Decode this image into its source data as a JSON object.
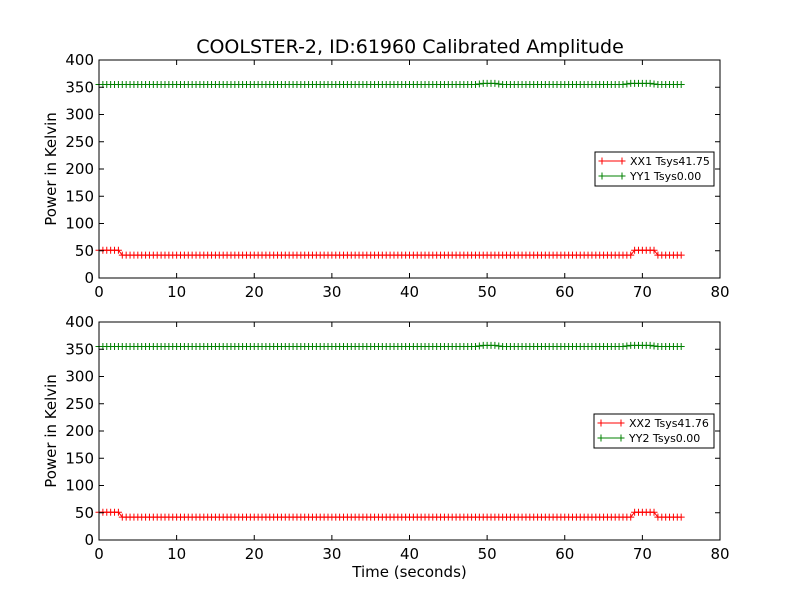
{
  "figure": {
    "title": "COOLSTER-2, ID:61960 Calibrated Amplitude"
  },
  "chart_data": [
    {
      "type": "line",
      "title": "COOLSTER-2, ID:61960 Calibrated Amplitude",
      "xlabel": "",
      "ylabel": "Power in Kelvin",
      "xlim": [
        0,
        80
      ],
      "ylim": [
        0,
        400
      ],
      "xticks": [
        "0",
        "10",
        "20",
        "30",
        "40",
        "50",
        "60",
        "70",
        "80"
      ],
      "yticks": [
        "0",
        "50",
        "100",
        "150",
        "200",
        "250",
        "300",
        "350",
        "400"
      ],
      "grid": false,
      "legend_position": "right",
      "marker": "+",
      "x_range": [
        0,
        75
      ],
      "x_step": 0.5,
      "series": [
        {
          "name": "XX1 Tsys41.75",
          "color": "#ff0000",
          "profile": [
            [
              0,
              51
            ],
            [
              2.5,
              51
            ],
            [
              3,
              42
            ],
            [
              68.5,
              42
            ],
            [
              69,
              51
            ],
            [
              71.5,
              51
            ],
            [
              72,
              42
            ],
            [
              75,
              42
            ]
          ]
        },
        {
          "name": "YY1 Tsys0.00",
          "color": "#008000",
          "profile": [
            [
              0,
              355
            ],
            [
              48.5,
              355
            ],
            [
              49.5,
              357
            ],
            [
              51,
              357
            ],
            [
              52,
              355
            ],
            [
              67.5,
              355
            ],
            [
              68.5,
              357
            ],
            [
              71,
              357
            ],
            [
              72,
              355
            ],
            [
              75,
              355
            ]
          ]
        }
      ]
    },
    {
      "type": "line",
      "title": "",
      "xlabel": "Time (seconds)",
      "ylabel": "Power in Kelvin",
      "xlim": [
        0,
        80
      ],
      "ylim": [
        0,
        400
      ],
      "xticks": [
        "0",
        "10",
        "20",
        "30",
        "40",
        "50",
        "60",
        "70",
        "80"
      ],
      "yticks": [
        "0",
        "50",
        "100",
        "150",
        "200",
        "250",
        "300",
        "350",
        "400"
      ],
      "grid": false,
      "legend_position": "right",
      "marker": "+",
      "x_range": [
        0,
        75
      ],
      "x_step": 0.5,
      "series": [
        {
          "name": "XX2 Tsys41.76",
          "color": "#ff0000",
          "profile": [
            [
              0,
              51
            ],
            [
              2.5,
              51
            ],
            [
              3,
              42
            ],
            [
              68.5,
              42
            ],
            [
              69,
              51
            ],
            [
              71.5,
              51
            ],
            [
              72,
              42
            ],
            [
              75,
              42
            ]
          ]
        },
        {
          "name": "YY2 Tsys0.00",
          "color": "#008000",
          "profile": [
            [
              0,
              355
            ],
            [
              48.5,
              355
            ],
            [
              49.5,
              357
            ],
            [
              51,
              357
            ],
            [
              52,
              355
            ],
            [
              67.5,
              355
            ],
            [
              68.5,
              357
            ],
            [
              71,
              357
            ],
            [
              72,
              355
            ],
            [
              75,
              355
            ]
          ]
        }
      ]
    }
  ]
}
